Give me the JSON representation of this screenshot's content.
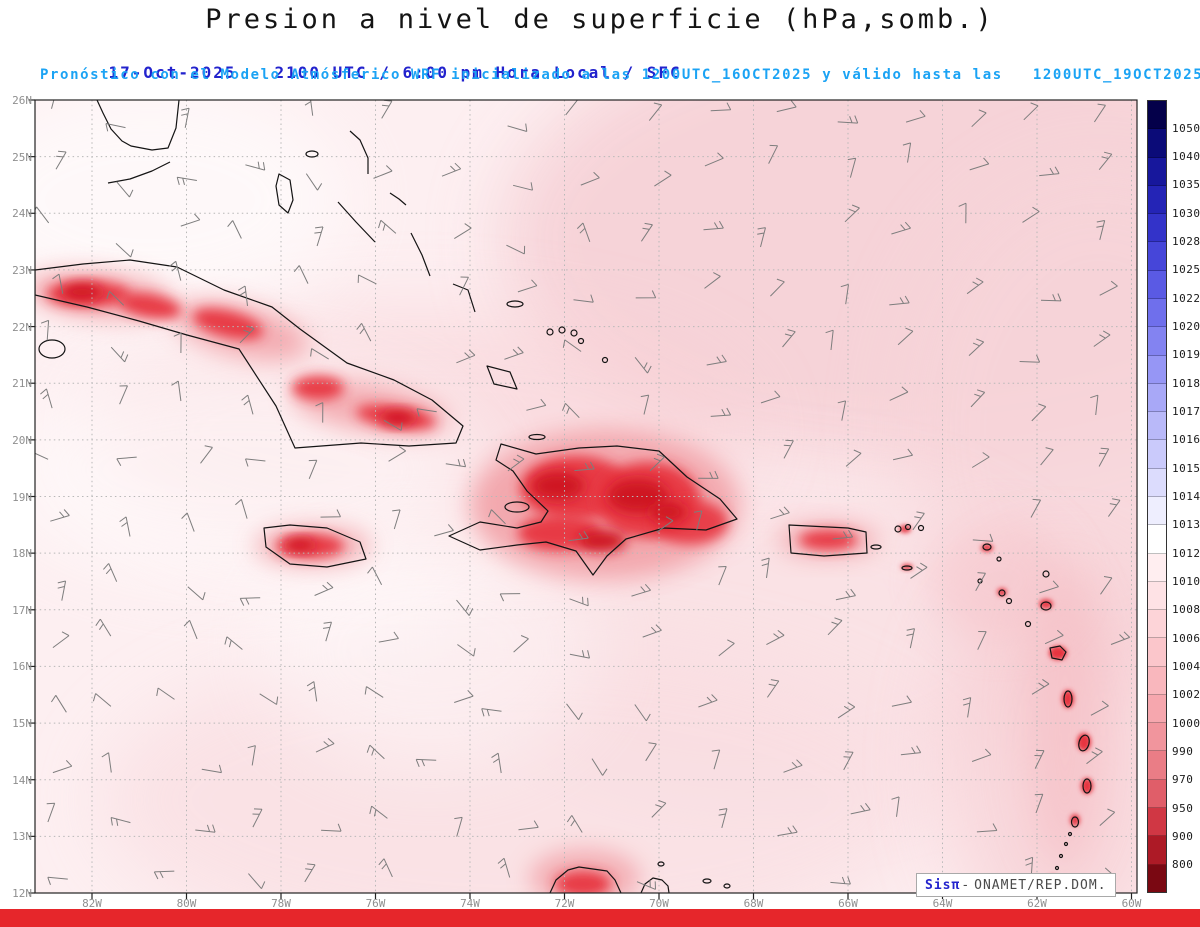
{
  "title": "Presion a nivel de superficie (hPa,somb.)",
  "subtitle": {
    "date": "17-Oct-2025",
    "valid": "2100 UTC / 6:00 pm Hora Local / SFC",
    "model": "Pronóstico con el Modelo Atmósferico WRF inicializado a las 1200UTC_16OCT2025 y válido hasta las   1200UTC_19OCT2025"
  },
  "axes": {
    "lat_labels": [
      "26N",
      "25N",
      "24N",
      "23N",
      "22N",
      "21N",
      "20N",
      "19N",
      "18N",
      "17N",
      "16N",
      "15N",
      "14N",
      "13N",
      "12N"
    ],
    "lon_labels": [
      "82W",
      "80W",
      "78W",
      "76W",
      "74W",
      "72W",
      "70W",
      "68W",
      "66W",
      "64W",
      "62W",
      "60W"
    ]
  },
  "colorbar": {
    "units": "hPa",
    "labels": [
      "1050",
      "1040",
      "1035",
      "1030",
      "1028",
      "1025",
      "1022",
      "1020",
      "1019",
      "1018",
      "1017",
      "1016",
      "1015",
      "1014",
      "1013",
      "1012",
      "1010",
      "1008",
      "1006",
      "1004",
      "1002",
      "1000",
      "990",
      "970",
      "950",
      "900",
      "800"
    ],
    "colors": [
      "#04004a",
      "#0b0b78",
      "#17179c",
      "#2424b6",
      "#3333c9",
      "#4646d9",
      "#5a5ae4",
      "#6f6fec",
      "#8383f1",
      "#9696f5",
      "#a8a8f7",
      "#b9b9f9",
      "#cacafb",
      "#dcdcfd",
      "#eeeefe",
      "#ffffff",
      "#ffeef0",
      "#fee2e5",
      "#fdd4d8",
      "#fbc6cb",
      "#f9b7bd",
      "#f6a7ae",
      "#f1959d",
      "#ea7d86",
      "#e05e69",
      "#d03744",
      "#ad1a26",
      "#7a0812"
    ]
  },
  "credit": {
    "system": "Sisπ",
    "separator": "-",
    "org": "ONAMET/REP.DOM."
  },
  "accent_colors": {
    "header_blue": "#2323cd",
    "header_cyan": "#1ba3f4",
    "footer_red": "#e6262b",
    "low_pressure_red": "#e73440"
  }
}
